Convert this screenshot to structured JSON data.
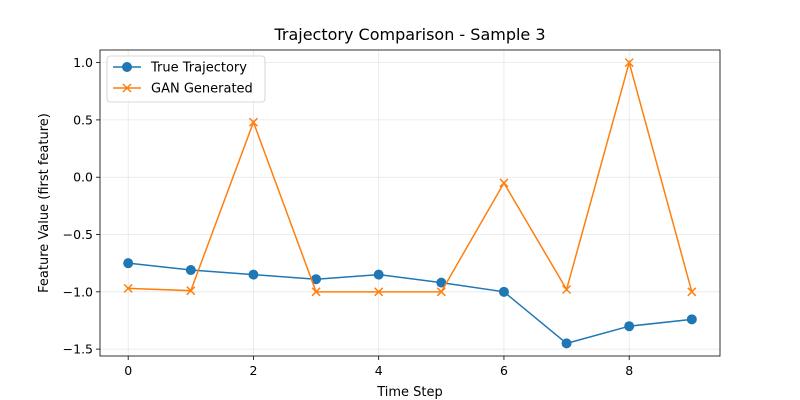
{
  "chart_data": {
    "type": "line",
    "title": "Trajectory Comparison - Sample 3",
    "xlabel": "Time Step",
    "ylabel": "Feature Value (first feature)",
    "xlim": [
      -0.45,
      9.45
    ],
    "ylim": [
      -1.56,
      1.11
    ],
    "xticks": [
      0,
      2,
      4,
      6,
      8
    ],
    "xtick_labels": [
      "0",
      "2",
      "4",
      "6",
      "8"
    ],
    "yticks": [
      -1.5,
      -1.0,
      -0.5,
      0.0,
      0.5,
      1.0
    ],
    "ytick_labels": [
      "−1.5",
      "−1.0",
      "−0.5",
      "0.0",
      "0.5",
      "1.0"
    ],
    "grid": true,
    "legend_position": "top-left",
    "x": [
      0,
      1,
      2,
      3,
      4,
      5,
      6,
      7,
      8,
      9
    ],
    "series": [
      {
        "name": "True Trajectory",
        "color": "#1f77b4",
        "marker": "circle",
        "values": [
          -0.75,
          -0.81,
          -0.85,
          -0.89,
          -0.85,
          -0.92,
          -1.0,
          -1.45,
          -1.3,
          -1.24
        ]
      },
      {
        "name": "GAN Generated",
        "color": "#ff7f0e",
        "marker": "x",
        "values": [
          -0.97,
          -0.99,
          0.48,
          -1.0,
          -1.0,
          -1.0,
          -0.05,
          -0.98,
          1.0,
          -1.0
        ]
      }
    ]
  }
}
